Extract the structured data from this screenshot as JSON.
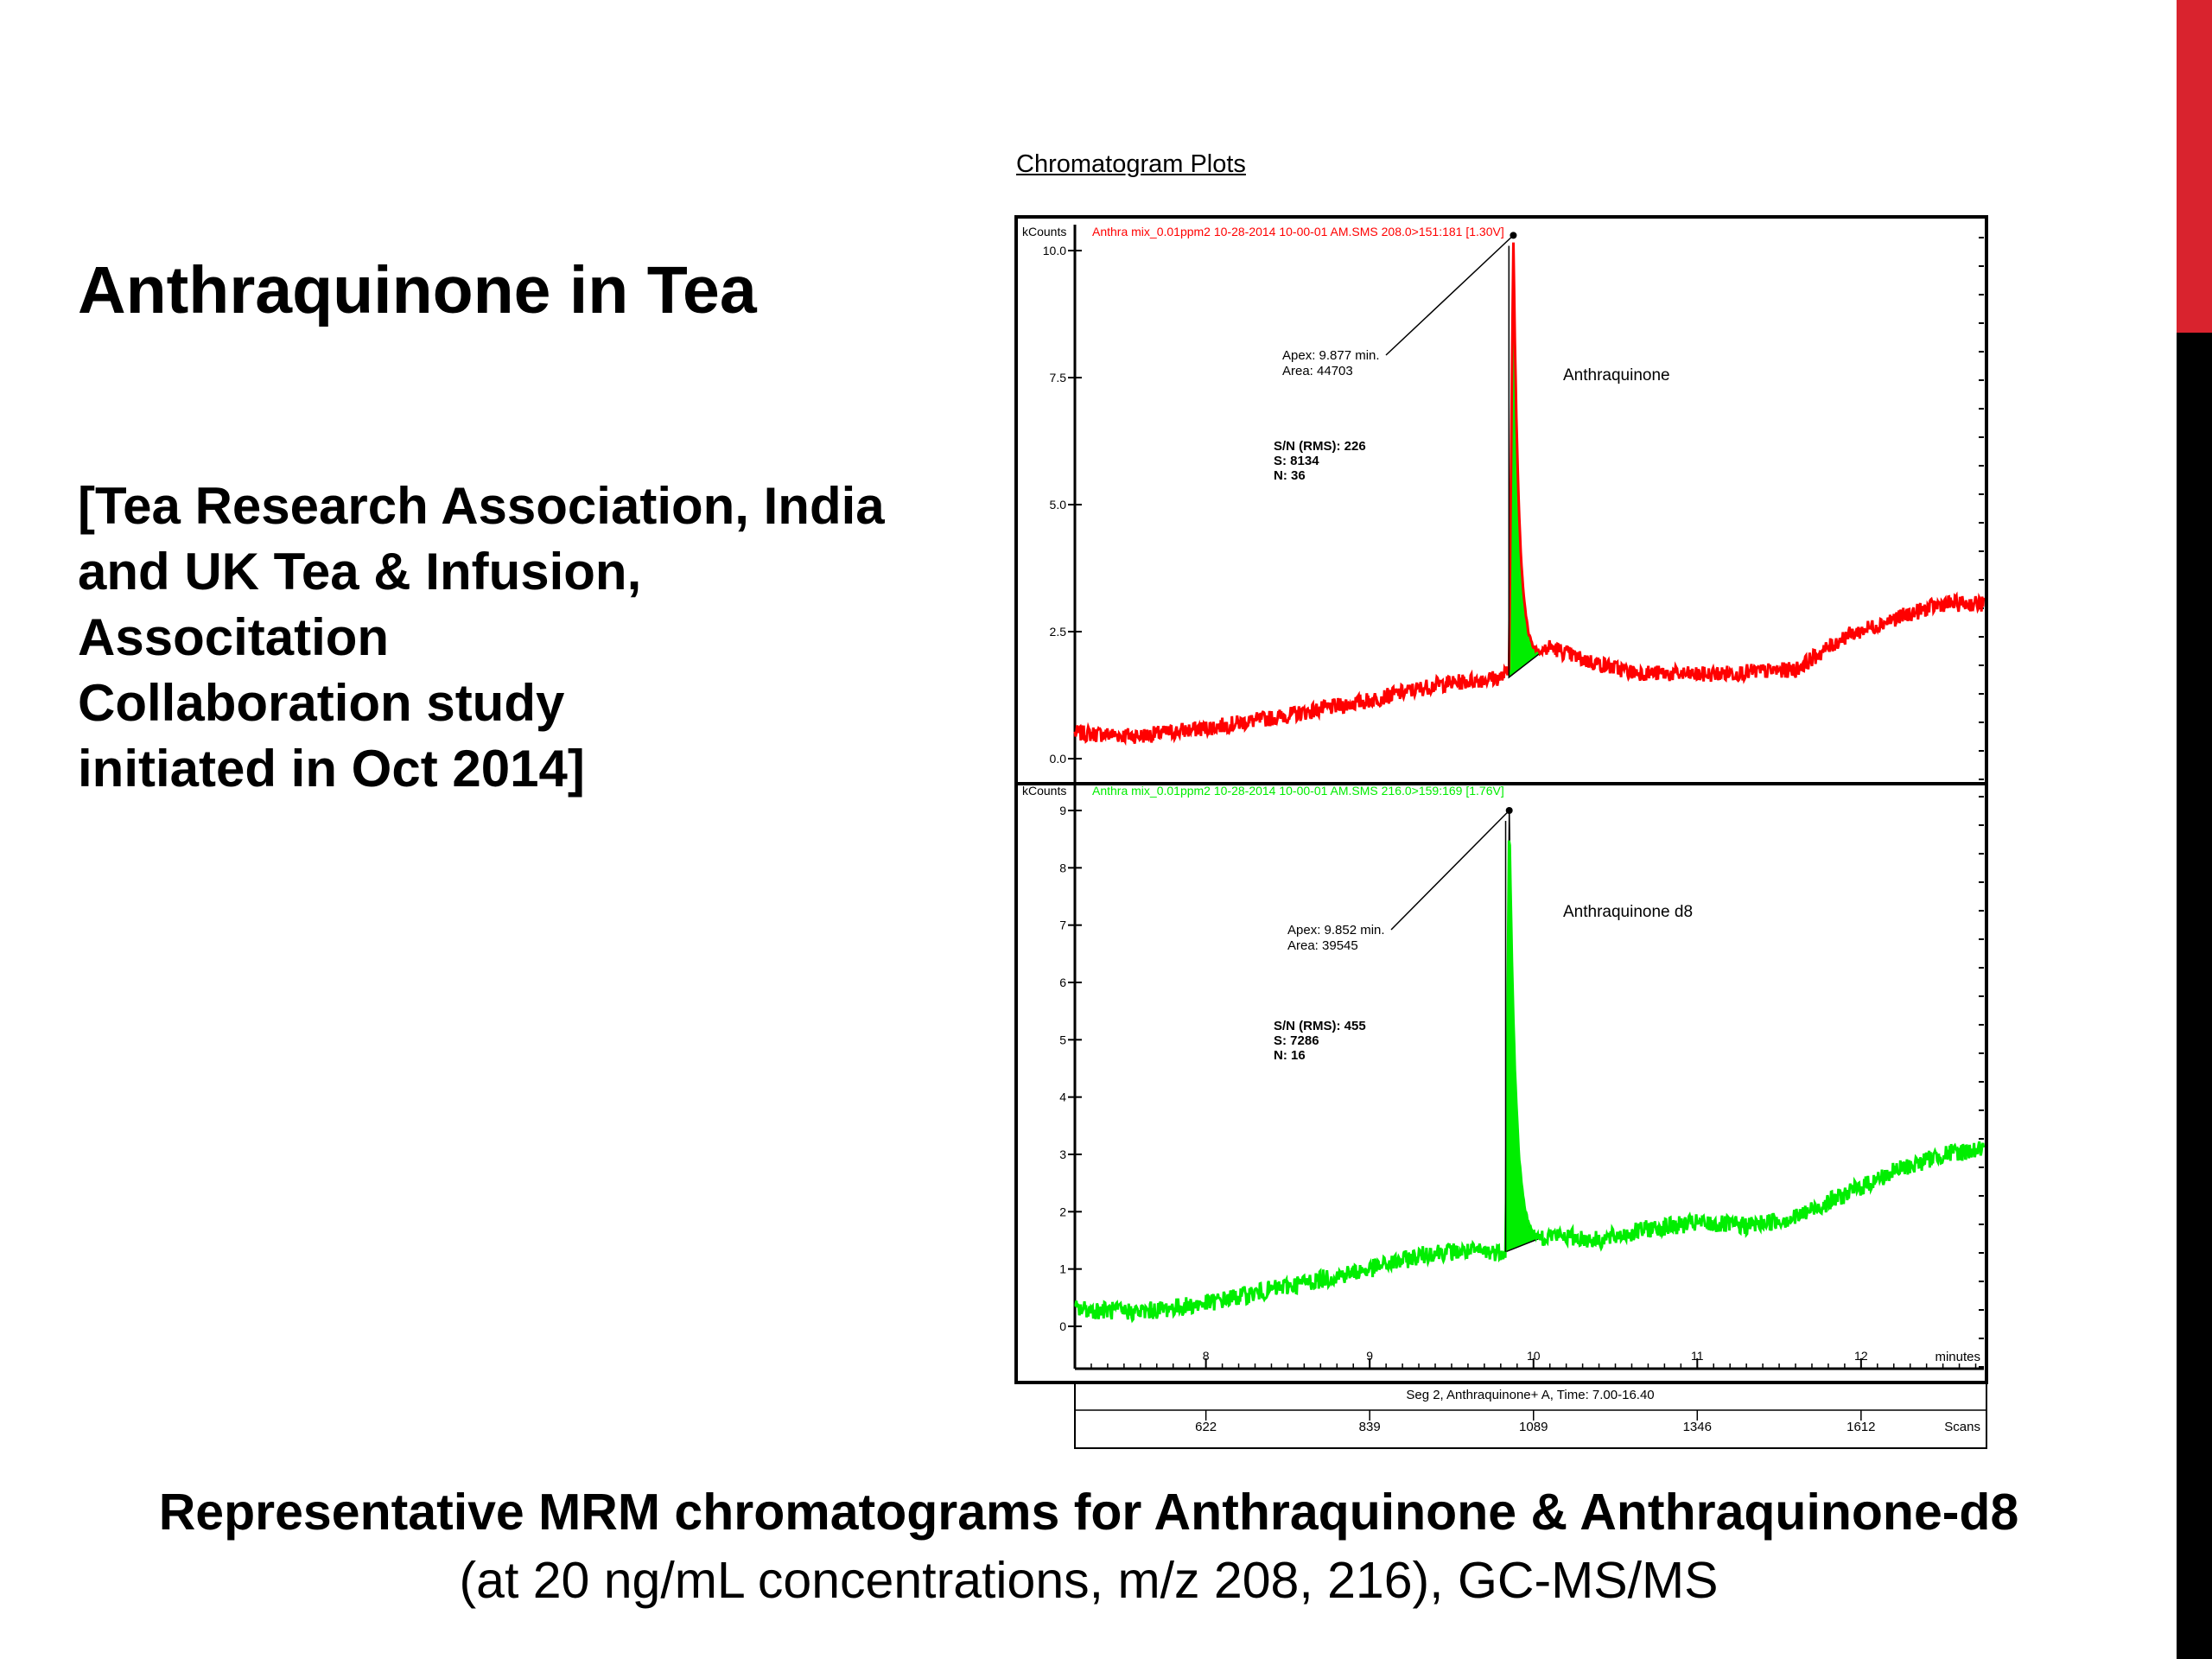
{
  "slide": {
    "title": "Anthraquinone in Tea",
    "subtitle_lines": [
      "[Tea Research Association, India",
      "and UK Tea & Infusion,",
      "Associtation",
      "Collaboration study",
      "initiated in Oct 2014]"
    ],
    "caption_bold": "Representative MRM chromatograms for Anthraquinone & Anthraquinone-d8",
    "caption_regular": "(at 20 ng/mL concentrations, m/z 208, 216), GC-MS/MS",
    "accent_colors": {
      "edge_top": "#d9232e",
      "edge_bottom": "#000000"
    }
  },
  "chart_data": {
    "type": "line",
    "heading": "Chromatogram Plots",
    "x_unit_label": "minutes",
    "x_range": [
      7.2,
      12.75
    ],
    "x_ticks": [
      "8",
      "9",
      "10",
      "11",
      "12"
    ],
    "scan_axis": {
      "label": "Seg 2, Anthraquinone+ A, Time:  7.00-16.40",
      "tick_labels": [
        "622",
        "839",
        "1089",
        "1346",
        "1612"
      ],
      "unit": "Scans"
    },
    "panels": [
      {
        "y_label": "kCounts",
        "header": "Anthra mix_0.01ppm2 10-28-2014 10-00-01 AM.SMS 208.0>151:181 [1.30V]",
        "color": "#ff0000",
        "y_range": [
          0,
          11
        ],
        "y_ticks": [
          "10.0",
          "7.5",
          "5.0",
          "2.5",
          "0.0"
        ],
        "y_tick_values": [
          10.0,
          7.5,
          5.0,
          2.5,
          0.0
        ],
        "compound": "Anthraquinone",
        "apex": "Apex: 9.877 min.",
        "area": "Area: 44703",
        "sn": "S/N (RMS): 226",
        "s": "S: 8134",
        "n": "N: 36",
        "peak": {
          "start": 9.85,
          "apex": 9.877,
          "end": 10.05,
          "height": 10.3,
          "base": 1.6
        },
        "baseline": [
          [
            7.2,
            0.5
          ],
          [
            7.6,
            0.45
          ],
          [
            8.0,
            0.6
          ],
          [
            8.5,
            0.85
          ],
          [
            9.0,
            1.15
          ],
          [
            9.4,
            1.45
          ],
          [
            9.8,
            1.6
          ],
          [
            10.1,
            2.2
          ],
          [
            10.3,
            1.95
          ],
          [
            10.6,
            1.7
          ],
          [
            11.0,
            1.65
          ],
          [
            11.3,
            1.7
          ],
          [
            11.6,
            1.75
          ],
          [
            11.9,
            2.4
          ],
          [
            12.2,
            2.75
          ],
          [
            12.5,
            3.05
          ],
          [
            12.75,
            3.05
          ]
        ]
      },
      {
        "y_label": "kCounts",
        "header": "Anthra mix_0.01ppm2 10-28-2014 10-00-01 AM.SMS 216.0>159:169 [1.76V]",
        "color": "#00ee00",
        "y_range": [
          -0.5,
          9.5
        ],
        "y_ticks": [
          "9",
          "8",
          "7",
          "6",
          "5",
          "4",
          "3",
          "2",
          "1",
          "0"
        ],
        "y_tick_values": [
          9,
          8,
          7,
          6,
          5,
          4,
          3,
          2,
          1,
          0
        ],
        "compound": "Anthraquinone d8",
        "apex": "Apex: 9.852 min.",
        "area": "Area: 39545",
        "sn": "S/N (RMS): 455",
        "s": "S: 7286",
        "n": "N: 16",
        "peak": {
          "start": 9.83,
          "apex": 9.852,
          "end": 10.05,
          "height": 9.0,
          "base": 1.3
        },
        "baseline": [
          [
            7.2,
            0.3
          ],
          [
            7.6,
            0.25
          ],
          [
            8.0,
            0.4
          ],
          [
            8.5,
            0.7
          ],
          [
            9.0,
            1.0
          ],
          [
            9.4,
            1.3
          ],
          [
            9.8,
            1.3
          ],
          [
            10.1,
            1.6
          ],
          [
            10.4,
            1.5
          ],
          [
            10.7,
            1.7
          ],
          [
            11.0,
            1.8
          ],
          [
            11.3,
            1.75
          ],
          [
            11.6,
            1.9
          ],
          [
            11.9,
            2.3
          ],
          [
            12.2,
            2.7
          ],
          [
            12.5,
            3.0
          ],
          [
            12.75,
            3.1
          ]
        ]
      }
    ]
  }
}
